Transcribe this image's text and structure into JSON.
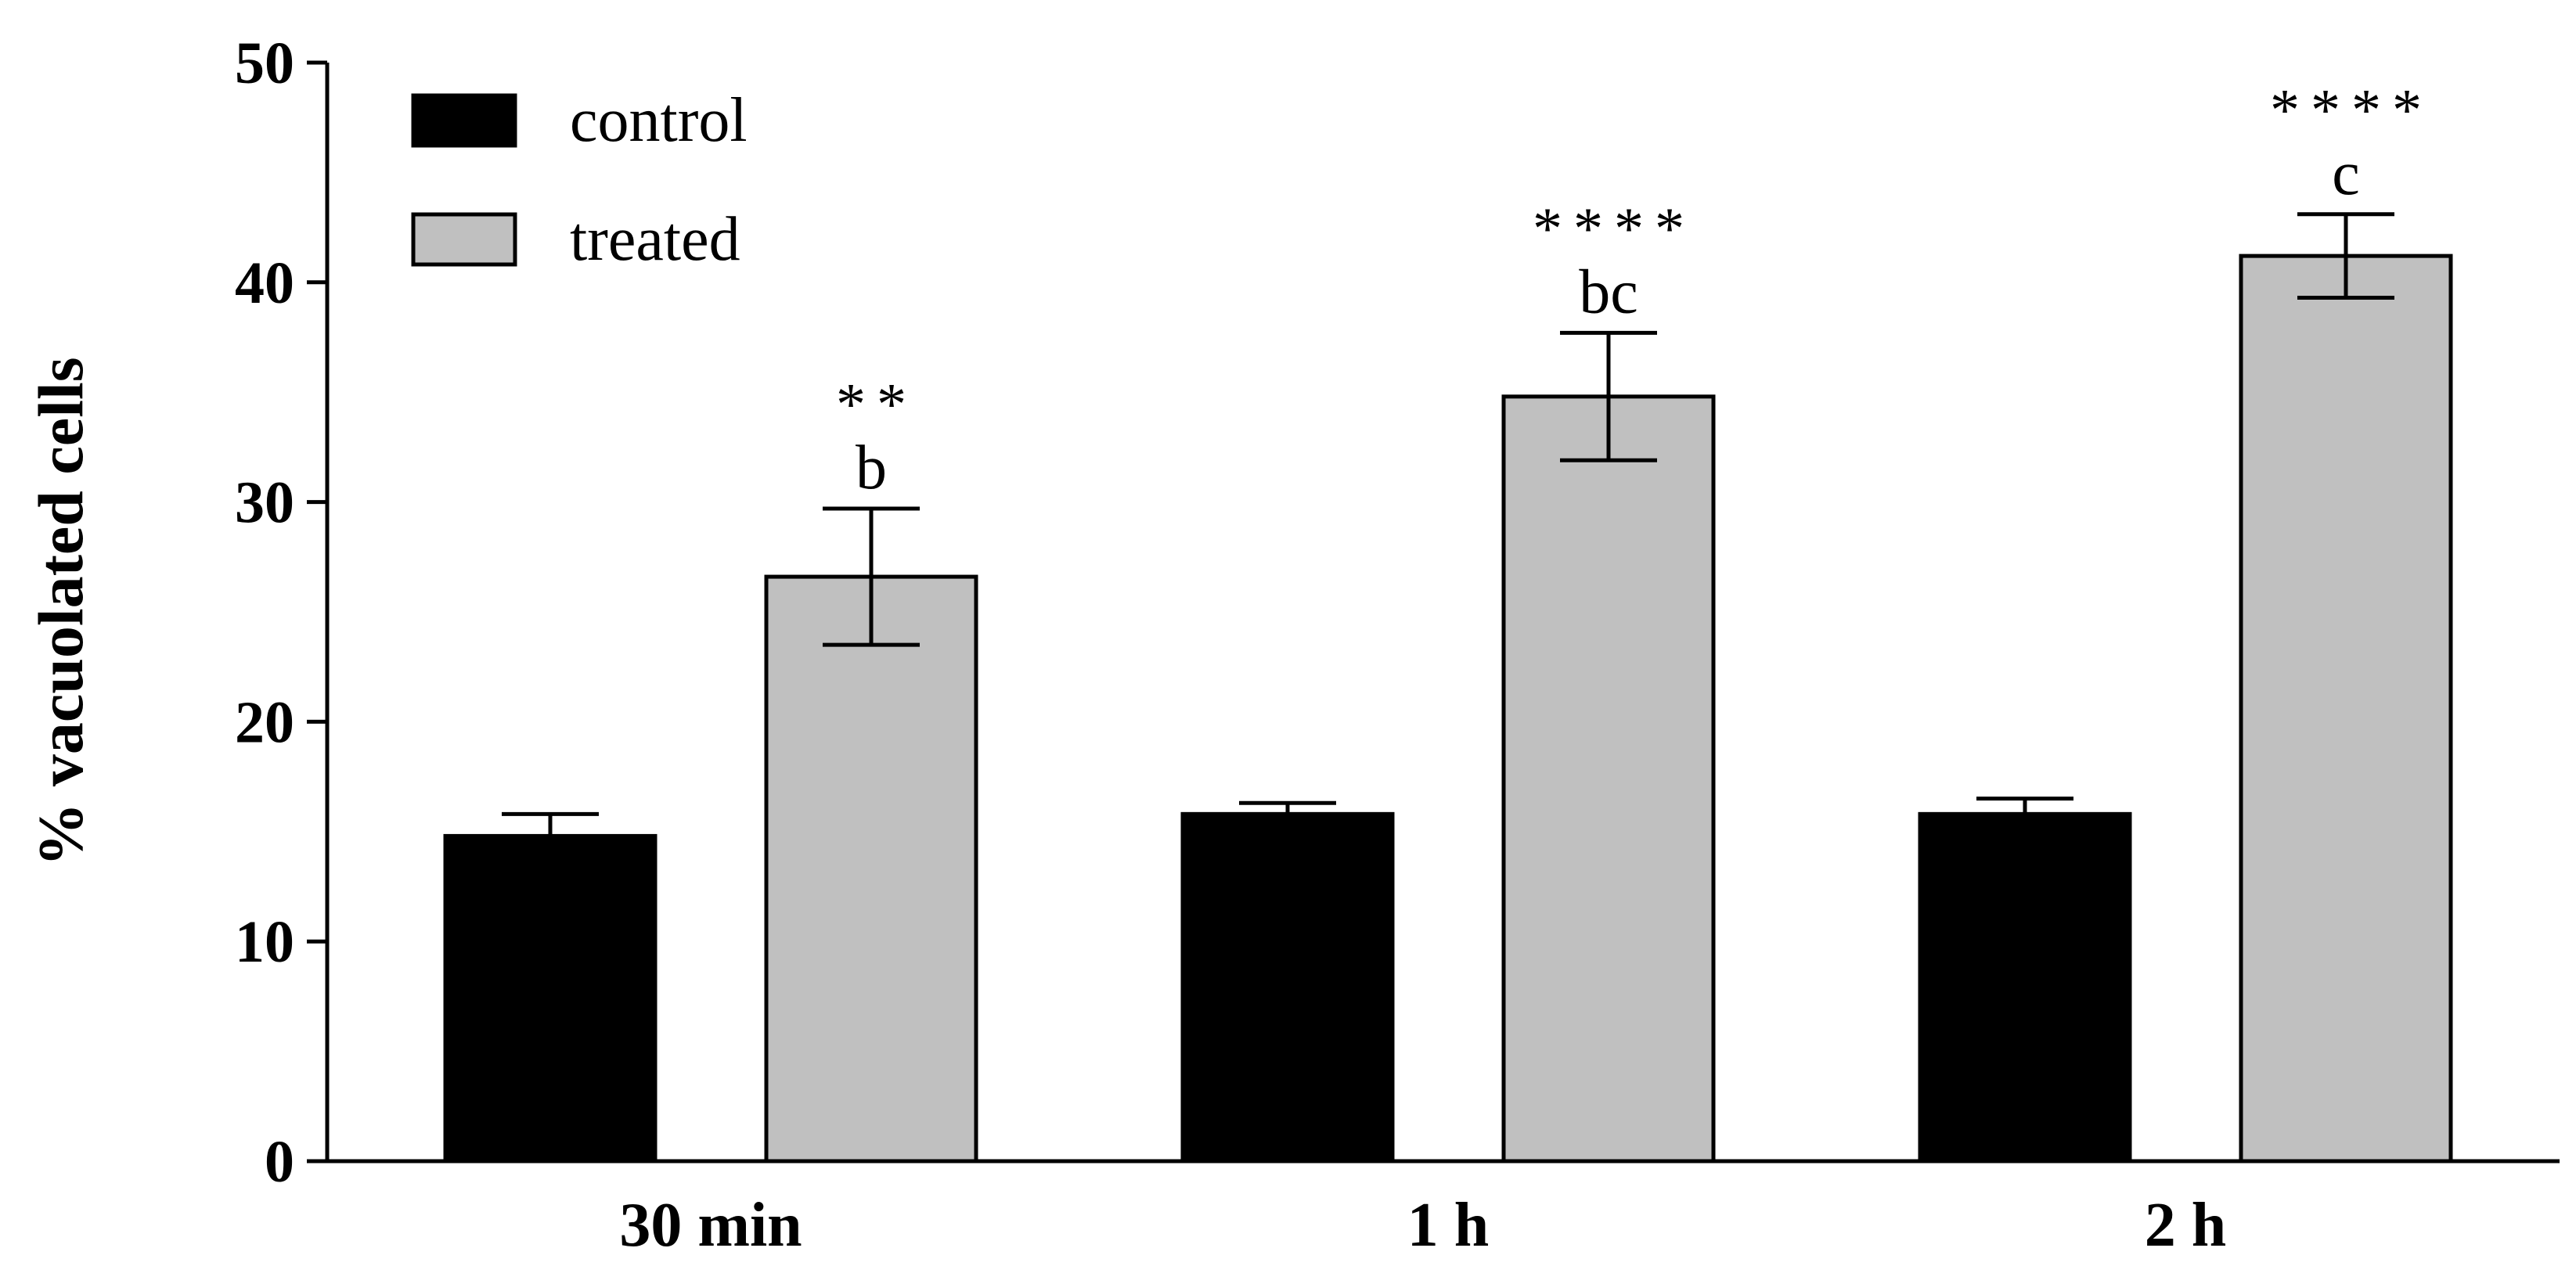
{
  "chart_data": {
    "type": "bar",
    "title": "",
    "xlabel": "",
    "ylabel": "% vacuolated cells",
    "ylim": [
      0,
      50
    ],
    "yticks": [
      0,
      10,
      20,
      30,
      40,
      50
    ],
    "ytick_labels": [
      "0",
      "10",
      "20",
      "30",
      "40",
      "50"
    ],
    "categories": [
      "30 min",
      "1 h",
      "2 h"
    ],
    "legend_position": "top-left",
    "series": [
      {
        "name": "control",
        "color": "#000000",
        "values": [
          14.8,
          15.8,
          15.8
        ],
        "errors": [
          1.0,
          0.5,
          0.7
        ],
        "letters": [
          "",
          "",
          ""
        ],
        "stars": [
          "",
          "",
          ""
        ]
      },
      {
        "name": "treated",
        "color": "#c0c0c0",
        "values": [
          26.6,
          34.8,
          41.2
        ],
        "errors": [
          3.1,
          2.9,
          1.9
        ],
        "letters": [
          "b",
          "bc",
          "c"
        ],
        "stars": [
          "**",
          "****",
          "****"
        ]
      }
    ]
  }
}
